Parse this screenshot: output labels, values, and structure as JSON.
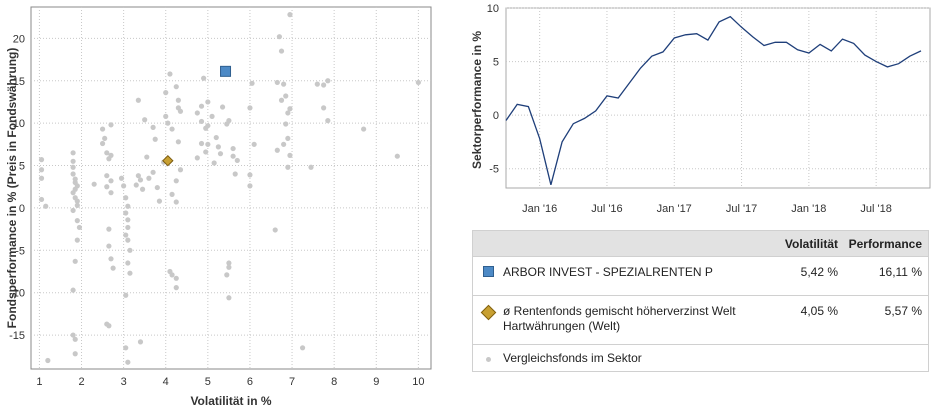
{
  "scatter_chart": {
    "type": "scatter",
    "xlabel": "Volatilität in %",
    "ylabel": "Fondsperformance in % (Preis in Fondswährung)",
    "xlim": [
      0.8,
      10.3
    ],
    "ylim": [
      -19,
      23.7
    ],
    "x_ticks": [
      "1",
      "2",
      "3",
      "4",
      "5",
      "6",
      "7",
      "8",
      "9",
      "10"
    ],
    "y_ticks": [
      "-15",
      "-10",
      "-5",
      "0",
      "5",
      "10",
      "15",
      "20"
    ],
    "grid": true,
    "highlight_fund": {
      "x": 5.42,
      "y": 16.11,
      "color": "#4d8ac6"
    },
    "sector_average": {
      "x": 4.05,
      "y": 5.57,
      "color": "#c8a032"
    },
    "comparison_color": "#c8c8c8",
    "comparison_points": [
      [
        1.05,
        5.7
      ],
      [
        1.05,
        4.5
      ],
      [
        1.05,
        3.5
      ],
      [
        1.05,
        1.0
      ],
      [
        1.15,
        0.2
      ],
      [
        1.2,
        -18
      ],
      [
        1.8,
        6.5
      ],
      [
        1.8,
        5.5
      ],
      [
        1.8,
        4.8
      ],
      [
        1.8,
        4.0
      ],
      [
        1.85,
        3.4
      ],
      [
        1.85,
        3.0
      ],
      [
        1.9,
        2.6
      ],
      [
        1.85,
        2.2
      ],
      [
        1.8,
        1.8
      ],
      [
        1.85,
        1.2
      ],
      [
        1.9,
        0.8
      ],
      [
        1.9,
        0.3
      ],
      [
        1.8,
        -0.3
      ],
      [
        1.9,
        -1.5
      ],
      [
        1.95,
        -2.3
      ],
      [
        1.9,
        -3.8
      ],
      [
        1.85,
        -6.3
      ],
      [
        1.8,
        -9.7
      ],
      [
        1.8,
        -15
      ],
      [
        1.85,
        -15.5
      ],
      [
        1.85,
        -17.2
      ],
      [
        2.3,
        2.8
      ],
      [
        2.5,
        9.3
      ],
      [
        2.5,
        7.6
      ],
      [
        2.55,
        8.2
      ],
      [
        2.6,
        6.5
      ],
      [
        2.65,
        5.8
      ],
      [
        2.7,
        6.2
      ],
      [
        2.6,
        3.8
      ],
      [
        2.7,
        3.2
      ],
      [
        2.6,
        2.5
      ],
      [
        2.7,
        1.8
      ],
      [
        2.65,
        -2.5
      ],
      [
        2.65,
        -4.5
      ],
      [
        2.7,
        -6.0
      ],
      [
        2.6,
        -13.7
      ],
      [
        2.65,
        -13.9
      ],
      [
        2.75,
        -7.1
      ],
      [
        2.7,
        9.8
      ],
      [
        2.95,
        3.5
      ],
      [
        3.0,
        2.6
      ],
      [
        3.05,
        1.2
      ],
      [
        3.1,
        0.2
      ],
      [
        3.05,
        -0.6
      ],
      [
        3.1,
        -1.4
      ],
      [
        3.1,
        -2.3
      ],
      [
        3.05,
        -3.2
      ],
      [
        3.1,
        -3.8
      ],
      [
        3.15,
        -5.0
      ],
      [
        3.1,
        -6.5
      ],
      [
        3.15,
        -7.7
      ],
      [
        3.05,
        -16.5
      ],
      [
        3.1,
        -18.2
      ],
      [
        3.05,
        -10.3
      ],
      [
        3.3,
        2.7
      ],
      [
        3.35,
        12.7
      ],
      [
        3.35,
        3.8
      ],
      [
        3.4,
        3.3
      ],
      [
        3.5,
        10.4
      ],
      [
        3.45,
        2.2
      ],
      [
        3.4,
        -15.8
      ],
      [
        3.55,
        6.0
      ],
      [
        3.6,
        3.5
      ],
      [
        3.7,
        4.2
      ],
      [
        3.7,
        9.5
      ],
      [
        3.75,
        8.1
      ],
      [
        3.8,
        2.4
      ],
      [
        3.85,
        0.8
      ],
      [
        3.95,
        5.4
      ],
      [
        4.0,
        10.8
      ],
      [
        4.0,
        13.6
      ],
      [
        4.1,
        15.8
      ],
      [
        4.05,
        10.0
      ],
      [
        4.1,
        -7.5
      ],
      [
        4.15,
        -7.9
      ],
      [
        4.25,
        -8.3
      ],
      [
        4.25,
        -9.4
      ],
      [
        4.25,
        14.3
      ],
      [
        4.15,
        9.3
      ],
      [
        4.3,
        7.8
      ],
      [
        4.3,
        12.7
      ],
      [
        4.3,
        11.8
      ],
      [
        4.35,
        11.4
      ],
      [
        4.15,
        1.6
      ],
      [
        4.25,
        3.2
      ],
      [
        4.35,
        4.5
      ],
      [
        4.25,
        0.7
      ],
      [
        4.75,
        11.2
      ],
      [
        4.85,
        10.2
      ],
      [
        4.85,
        7.6
      ],
      [
        4.95,
        9.4
      ],
      [
        5.0,
        12.5
      ],
      [
        5.0,
        9.7
      ],
      [
        5.0,
        7.5
      ],
      [
        5.1,
        10.8
      ],
      [
        5.15,
        5.3
      ],
      [
        5.2,
        8.3
      ],
      [
        5.25,
        7.2
      ],
      [
        5.3,
        6.4
      ],
      [
        5.35,
        11.9
      ],
      [
        5.45,
        9.9
      ],
      [
        5.5,
        10.3
      ],
      [
        5.6,
        7.0
      ],
      [
        5.6,
        6.1
      ],
      [
        5.65,
        4.0
      ],
      [
        5.7,
        5.6
      ],
      [
        5.5,
        -7.0
      ],
      [
        5.5,
        -6.5
      ],
      [
        5.45,
        -7.9
      ],
      [
        5.5,
        -10.6
      ],
      [
        6.05,
        14.7
      ],
      [
        6.1,
        7.5
      ],
      [
        6.0,
        3.9
      ],
      [
        6.0,
        2.6
      ],
      [
        6.65,
        14.8
      ],
      [
        6.7,
        20.2
      ],
      [
        6.75,
        18.5
      ],
      [
        6.8,
        14.6
      ],
      [
        6.75,
        12.7
      ],
      [
        6.85,
        13.2
      ],
      [
        6.9,
        11.2
      ],
      [
        6.95,
        11.7
      ],
      [
        6.85,
        9.9
      ],
      [
        6.9,
        8.2
      ],
      [
        6.95,
        6.2
      ],
      [
        6.9,
        4.8
      ],
      [
        6.8,
        7.5
      ],
      [
        6.95,
        22.8
      ],
      [
        6.65,
        6.8
      ],
      [
        6.6,
        -2.6
      ],
      [
        7.25,
        -16.5
      ],
      [
        7.6,
        14.6
      ],
      [
        7.75,
        14.5
      ],
      [
        7.85,
        15.0
      ],
      [
        7.75,
        11.8
      ],
      [
        7.85,
        10.3
      ],
      [
        7.45,
        4.8
      ],
      [
        8.7,
        9.3
      ],
      [
        9.5,
        6.1
      ],
      [
        10.0,
        14.8
      ],
      [
        4.75,
        5.9
      ],
      [
        4.95,
        6.6
      ],
      [
        4.85,
        12.0
      ],
      [
        4.9,
        15.3
      ],
      [
        6.0,
        11.8
      ]
    ]
  },
  "line_chart": {
    "type": "line",
    "ylabel": "Sektorperformance in %",
    "ylim": [
      -6.8,
      10
    ],
    "y_ticks": [
      "10",
      "5",
      "0",
      "-5"
    ],
    "x_ticks": [
      "Jan '16",
      "Jul '16",
      "Jan '17",
      "Jul '17",
      "Jan '18",
      "Jul '18"
    ],
    "grid": true,
    "line_color": "#1f3f7a",
    "x": [
      "2015-10",
      "2015-11",
      "2015-12",
      "2016-01",
      "2016-02",
      "2016-03",
      "2016-04",
      "2016-05",
      "2016-06",
      "2016-07",
      "2016-08",
      "2016-09",
      "2016-10",
      "2016-11",
      "2016-12",
      "2017-01",
      "2017-02",
      "2017-03",
      "2017-04",
      "2017-05",
      "2017-06",
      "2017-07",
      "2017-08",
      "2017-09",
      "2017-10",
      "2017-11",
      "2017-12",
      "2018-01",
      "2018-02",
      "2018-03",
      "2018-04",
      "2018-05",
      "2018-06",
      "2018-07",
      "2018-08",
      "2018-09",
      "2018-10",
      "2018-11"
    ],
    "values": [
      -0.5,
      1.0,
      0.8,
      -2.2,
      -6.5,
      -2.5,
      -0.8,
      -0.3,
      0.4,
      1.8,
      1.6,
      3.0,
      4.4,
      5.5,
      5.9,
      7.2,
      7.5,
      7.6,
      7.0,
      8.7,
      9.2,
      8.2,
      7.3,
      6.5,
      6.8,
      6.8,
      6.1,
      5.8,
      6.6,
      6.0,
      7.1,
      6.7,
      5.6,
      5.0,
      4.5,
      4.8,
      5.5,
      6.0
    ]
  },
  "legend": {
    "header_volatility": "Volatilität",
    "header_performance": "Performance",
    "fund_name": "ARBOR INVEST - SPEZIALRENTEN P",
    "fund_volatility": "5,42 %",
    "fund_performance": "16,11 %",
    "average_name_line1": "ø Rentenfonds gemischt höherverzinst Welt",
    "average_name_line2": "Hartwährungen (Welt)",
    "average_volatility": "4,05 %",
    "average_performance": "5,57 %",
    "comparison_label": "Vergleichsfonds im Sektor"
  }
}
